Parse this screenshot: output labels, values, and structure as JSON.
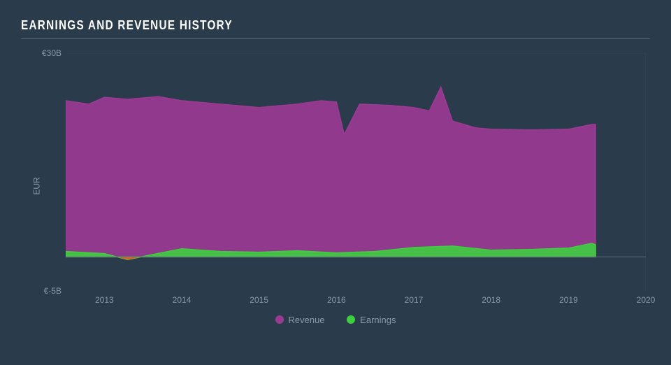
{
  "title": "EARNINGS AND REVENUE HISTORY",
  "chart": {
    "type": "area",
    "background_color": "#2a3b4c",
    "plot_border_color": "#5a6b78",
    "axis_text_color": "#8a99a6",
    "y_label": "EUR",
    "y_ticks": [
      {
        "value": 30,
        "label": "€30B"
      },
      {
        "value": -5,
        "label": "€-5B"
      }
    ],
    "y_range": {
      "min": -5,
      "max": 30
    },
    "x_ticks": [
      {
        "value": 2013,
        "label": "2013"
      },
      {
        "value": 2014,
        "label": "2014"
      },
      {
        "value": 2015,
        "label": "2015"
      },
      {
        "value": 2016,
        "label": "2016"
      },
      {
        "value": 2017,
        "label": "2017"
      },
      {
        "value": 2018,
        "label": "2018"
      },
      {
        "value": 2019,
        "label": "2019"
      },
      {
        "value": 2020,
        "label": "2020"
      }
    ],
    "x_range": {
      "min": 2012.5,
      "max": 2020
    },
    "zero_line_y": 0,
    "series": [
      {
        "name": "Revenue",
        "color": "#9c3a93",
        "fill_opacity": 0.9,
        "points": [
          [
            2012.5,
            23.0
          ],
          [
            2012.8,
            22.5
          ],
          [
            2013.0,
            23.5
          ],
          [
            2013.3,
            23.2
          ],
          [
            2013.7,
            23.6
          ],
          [
            2014.0,
            23.0
          ],
          [
            2014.5,
            22.5
          ],
          [
            2015.0,
            22.0
          ],
          [
            2015.5,
            22.5
          ],
          [
            2015.8,
            23.0
          ],
          [
            2016.0,
            22.8
          ],
          [
            2016.1,
            18.0
          ],
          [
            2016.3,
            22.5
          ],
          [
            2016.7,
            22.3
          ],
          [
            2017.0,
            22.0
          ],
          [
            2017.2,
            21.5
          ],
          [
            2017.35,
            25.0
          ],
          [
            2017.5,
            20.0
          ],
          [
            2017.8,
            19.0
          ],
          [
            2018.0,
            18.8
          ],
          [
            2018.5,
            18.7
          ],
          [
            2019.0,
            18.8
          ],
          [
            2019.3,
            19.5
          ],
          [
            2019.35,
            19.5
          ]
        ]
      },
      {
        "name": "Earnings",
        "color": "#3ecf3e",
        "fill_opacity": 0.9,
        "points": [
          [
            2012.5,
            0.8
          ],
          [
            2013.0,
            0.5
          ],
          [
            2013.3,
            -0.4
          ],
          [
            2013.6,
            0.3
          ],
          [
            2014.0,
            1.2
          ],
          [
            2014.5,
            0.8
          ],
          [
            2015.0,
            0.7
          ],
          [
            2015.5,
            0.9
          ],
          [
            2016.0,
            0.6
          ],
          [
            2016.5,
            0.8
          ],
          [
            2017.0,
            1.4
          ],
          [
            2017.5,
            1.6
          ],
          [
            2018.0,
            1.0
          ],
          [
            2018.5,
            1.1
          ],
          [
            2019.0,
            1.3
          ],
          [
            2019.3,
            2.0
          ],
          [
            2019.35,
            1.8
          ]
        ]
      }
    ],
    "negative_earnings_highlight_color": "#e85a2a",
    "legend": [
      {
        "label": "Revenue",
        "color": "#9c3a93"
      },
      {
        "label": "Earnings",
        "color": "#3ecf3e"
      }
    ]
  }
}
